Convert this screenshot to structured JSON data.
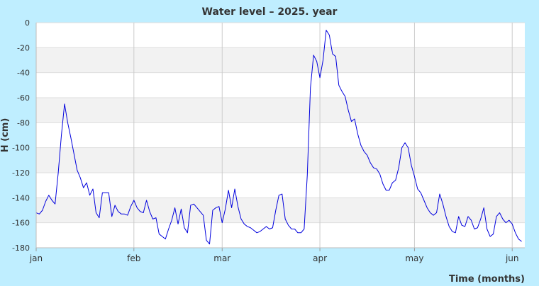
{
  "chart_data": {
    "type": "line",
    "title": "Water level – 2025. year",
    "xlabel": "Time (months)",
    "ylabel": "H (cm)",
    "ylim": [
      -180,
      0
    ],
    "yticks": [
      0,
      -20,
      -40,
      -60,
      -80,
      -100,
      -120,
      -140,
      -160,
      -180
    ],
    "xlim": [
      1,
      156
    ],
    "xticks": [
      {
        "day": 1,
        "label": "jan"
      },
      {
        "day": 32,
        "label": "feb"
      },
      {
        "day": 60,
        "label": "mar"
      },
      {
        "day": 91,
        "label": "apr"
      },
      {
        "day": 121,
        "label": "may"
      },
      {
        "day": 152,
        "label": "jun"
      }
    ],
    "grid": true,
    "colors": {
      "line": "#0000dd",
      "band": "#f2f2f2",
      "plot_bg": "#ffffff",
      "page_bg": "#bfeeff"
    },
    "series": [
      {
        "values": [
          -152,
          -153,
          -150,
          -143,
          -138,
          -142,
          -145,
          -120,
          -90,
          -65,
          -80,
          -92,
          -105,
          -118,
          -124,
          -132,
          -128,
          -138,
          -133,
          -152,
          -156,
          -136,
          -136,
          -136,
          -155,
          -146,
          -151,
          -153,
          -153,
          -154,
          -147,
          -142,
          -148,
          -151,
          -152,
          -142,
          -151,
          -157,
          -156,
          -169,
          -171,
          -173,
          -165,
          -158,
          -148,
          -161,
          -149,
          -164,
          -168,
          -146,
          -145,
          -148,
          -151,
          -154,
          -174,
          -177,
          -150,
          -148,
          -147,
          -160,
          -149,
          -134,
          -148,
          -133,
          -147,
          -157,
          -161,
          -163,
          -164,
          -166,
          -168,
          -167,
          -165,
          -163,
          -165,
          -164,
          -150,
          -138,
          -137,
          -157,
          -162,
          -165,
          -165,
          -168,
          -168,
          -165,
          -122,
          -52,
          -26,
          -31,
          -44,
          -30,
          -6,
          -10,
          -25,
          -27,
          -50,
          -55,
          -59,
          -70,
          -79,
          -77,
          -89,
          -98,
          -103,
          -106,
          -112,
          -116,
          -117,
          -121,
          -129,
          -134,
          -134,
          -128,
          -126,
          -116,
          -100,
          -96,
          -100,
          -114,
          -123,
          -133,
          -136,
          -142,
          -148,
          -152,
          -154,
          -152,
          -137,
          -145,
          -155,
          -163,
          -167,
          -168,
          -155,
          -162,
          -163,
          -155,
          -158,
          -165,
          -164,
          -157,
          -148,
          -165,
          -171,
          -169,
          -155,
          -152,
          -157,
          -160,
          -158,
          -161,
          -168,
          -173,
          -175
        ]
      }
    ]
  }
}
